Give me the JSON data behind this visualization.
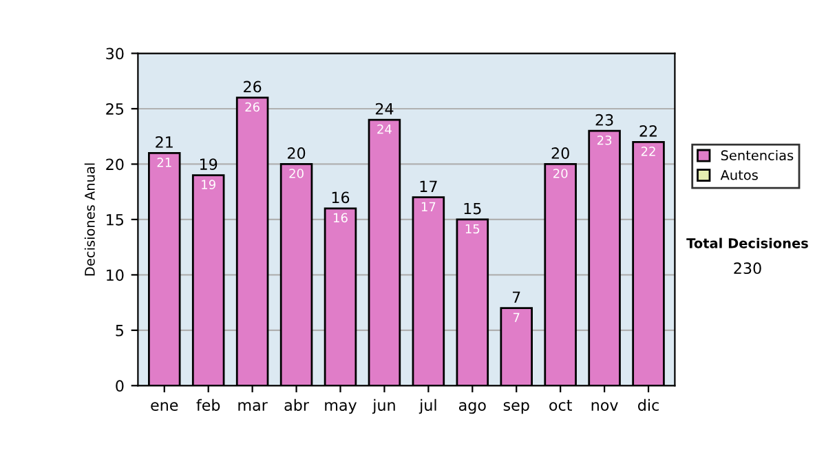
{
  "chart_data": {
    "type": "bar",
    "stacked": true,
    "ylabel": "Decisiones Anual",
    "categories": [
      "ene",
      "feb",
      "mar",
      "abr",
      "may",
      "jun",
      "jul",
      "ago",
      "sep",
      "oct",
      "nov",
      "dic"
    ],
    "series": [
      {
        "name": "Sentencias",
        "color": "#e07dc8",
        "values": [
          21,
          19,
          26,
          20,
          16,
          24,
          17,
          15,
          7,
          20,
          23,
          22
        ]
      },
      {
        "name": "Autos",
        "color": "#e6eeb0",
        "values": [
          null,
          null,
          null,
          null,
          null,
          null,
          null,
          null,
          null,
          null,
          null,
          null
        ]
      }
    ],
    "data_labels": true,
    "totals": [
      "21",
      "19",
      "26",
      "20",
      "16",
      "24",
      "17",
      "15",
      "7",
      "20",
      "23",
      "22"
    ],
    "ylim": [
      0,
      30
    ],
    "yticks": [
      0,
      5,
      10,
      15,
      20,
      25,
      30
    ],
    "grid": "y",
    "legend": "right",
    "annotations": [
      "Total Decisiones",
      "230"
    ]
  }
}
